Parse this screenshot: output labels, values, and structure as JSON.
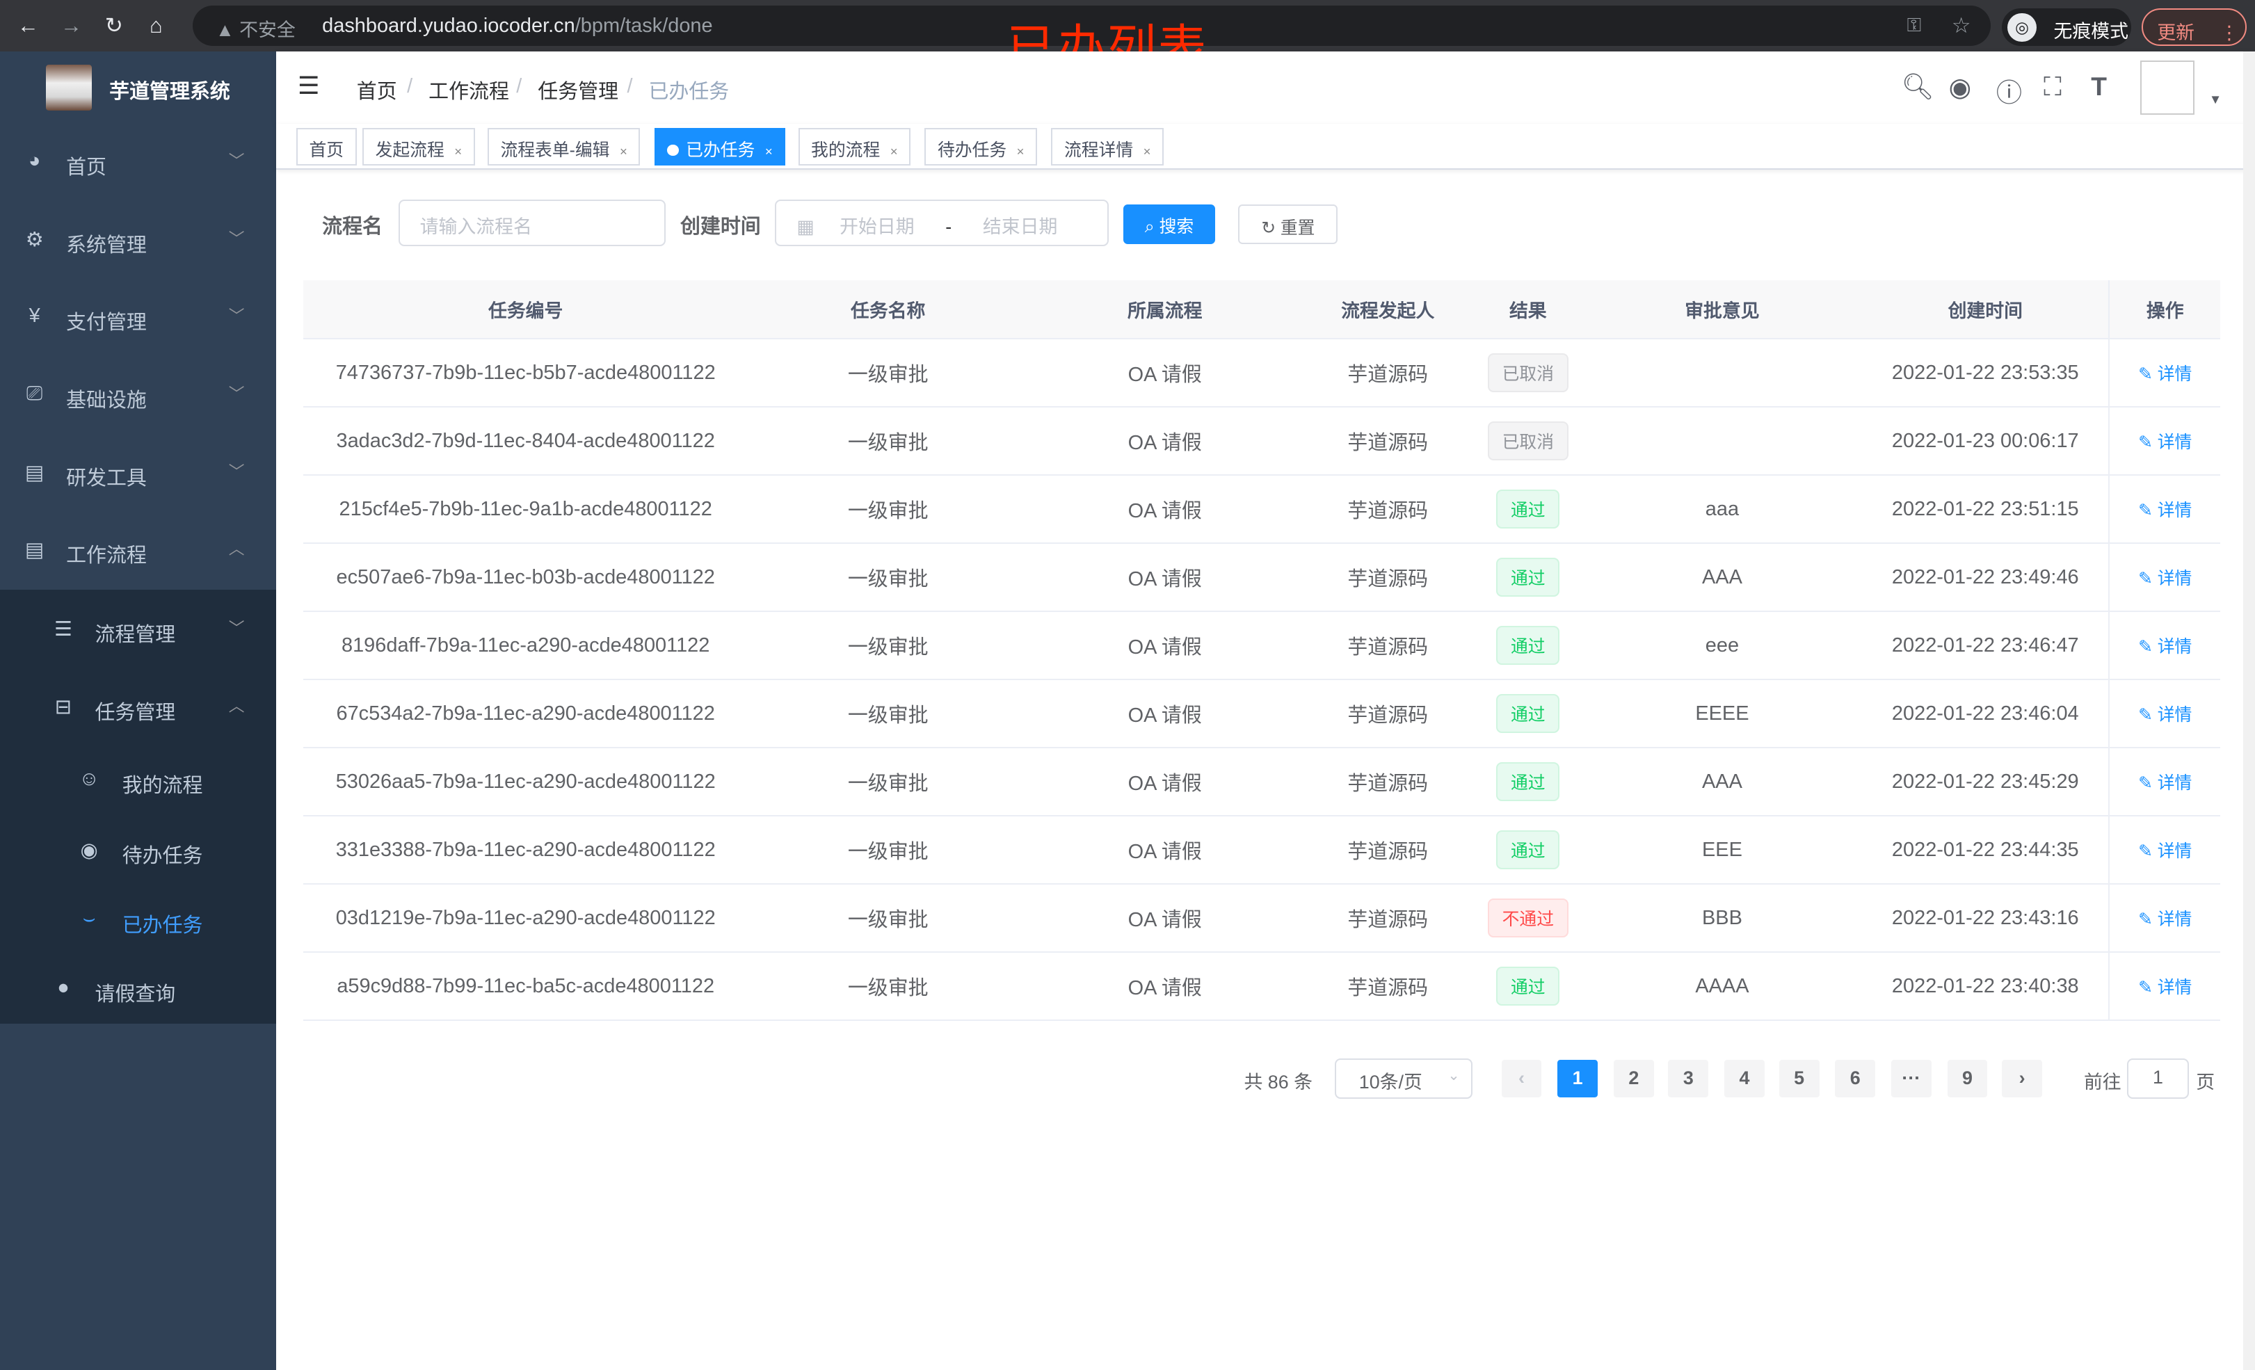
{
  "browser": {
    "insecure_label": "不安全",
    "url_host": "dashboard.yudao.iocoder.cn",
    "url_path": "/bpm/task/done",
    "incognito_label": "无痕模式",
    "update_label": "更新"
  },
  "overlay_title": "已办列表",
  "sidebar": {
    "app_title": "芋道管理系统",
    "items": [
      {
        "label": "首页",
        "icon": "dashboard-icon"
      },
      {
        "label": "系统管理",
        "icon": "gear-icon"
      },
      {
        "label": "支付管理",
        "icon": "yen-icon"
      },
      {
        "label": "基础设施",
        "icon": "monitor-icon"
      },
      {
        "label": "研发工具",
        "icon": "toolbox-icon"
      },
      {
        "label": "工作流程",
        "icon": "toolbox-icon"
      },
      {
        "label": "流程管理",
        "icon": "list-icon"
      },
      {
        "label": "任务管理",
        "icon": "tree-icon"
      },
      {
        "label": "我的流程",
        "icon": "people-icon"
      },
      {
        "label": "待办任务",
        "icon": "eye-icon"
      },
      {
        "label": "已办任务",
        "icon": "eye-closed-icon"
      },
      {
        "label": "请假查询",
        "icon": "user-icon"
      }
    ],
    "active_color": "#409eff"
  },
  "breadcrumb": [
    "首页",
    "工作流程",
    "任务管理",
    "已办任务"
  ],
  "tags": [
    "首页",
    "发起流程",
    "流程表单-编辑",
    "已办任务",
    "我的流程",
    "待办任务",
    "流程详情"
  ],
  "search": {
    "name_label": "流程名",
    "name_placeholder": "请输入流程名",
    "time_label": "创建时间",
    "start_placeholder": "开始日期",
    "range_sep": "-",
    "end_placeholder": "结束日期",
    "search_button": "搜索",
    "reset_button": "重置"
  },
  "table": {
    "headers": [
      "任务编号",
      "任务名称",
      "所属流程",
      "流程发起人",
      "结果",
      "审批意见",
      "创建时间",
      "操作"
    ],
    "rows": [
      {
        "id": "74736737-7b9b-11ec-b5b7-acde48001122",
        "name": "一级审批",
        "process": "OA 请假",
        "starter": "芋道源码",
        "result": "已取消",
        "status": "cancel",
        "comment": "",
        "time": "2022-01-22 23:53:35",
        "op": "详情"
      },
      {
        "id": "3adac3d2-7b9d-11ec-8404-acde48001122",
        "name": "一级审批",
        "process": "OA 请假",
        "starter": "芋道源码",
        "result": "已取消",
        "status": "cancel",
        "comment": "",
        "time": "2022-01-23 00:06:17",
        "op": "详情"
      },
      {
        "id": "215cf4e5-7b9b-11ec-9a1b-acde48001122",
        "name": "一级审批",
        "process": "OA 请假",
        "starter": "芋道源码",
        "result": "通过",
        "status": "pass",
        "comment": "aaa",
        "time": "2022-01-22 23:51:15",
        "op": "详情"
      },
      {
        "id": "ec507ae6-7b9a-11ec-b03b-acde48001122",
        "name": "一级审批",
        "process": "OA 请假",
        "starter": "芋道源码",
        "result": "通过",
        "status": "pass",
        "comment": "AAA",
        "time": "2022-01-22 23:49:46",
        "op": "详情"
      },
      {
        "id": "8196daff-7b9a-11ec-a290-acde48001122",
        "name": "一级审批",
        "process": "OA 请假",
        "starter": "芋道源码",
        "result": "通过",
        "status": "pass",
        "comment": "eee",
        "time": "2022-01-22 23:46:47",
        "op": "详情"
      },
      {
        "id": "67c534a2-7b9a-11ec-a290-acde48001122",
        "name": "一级审批",
        "process": "OA 请假",
        "starter": "芋道源码",
        "result": "通过",
        "status": "pass",
        "comment": "EEEE",
        "time": "2022-01-22 23:46:04",
        "op": "详情"
      },
      {
        "id": "53026aa5-7b9a-11ec-a290-acde48001122",
        "name": "一级审批",
        "process": "OA 请假",
        "starter": "芋道源码",
        "result": "通过",
        "status": "pass",
        "comment": "AAA",
        "time": "2022-01-22 23:45:29",
        "op": "详情"
      },
      {
        "id": "331e3388-7b9a-11ec-a290-acde48001122",
        "name": "一级审批",
        "process": "OA 请假",
        "starter": "芋道源码",
        "result": "通过",
        "status": "pass",
        "comment": "EEE",
        "time": "2022-01-22 23:44:35",
        "op": "详情"
      },
      {
        "id": "03d1219e-7b9a-11ec-a290-acde48001122",
        "name": "一级审批",
        "process": "OA 请假",
        "starter": "芋道源码",
        "result": "不通过",
        "status": "fail",
        "comment": "BBB",
        "time": "2022-01-22 23:43:16",
        "op": "详情"
      },
      {
        "id": "a59c9d88-7b99-11ec-ba5c-acde48001122",
        "name": "一级审批",
        "process": "OA 请假",
        "starter": "芋道源码",
        "result": "通过",
        "status": "pass",
        "comment": "AAAA",
        "time": "2022-01-22 23:40:38",
        "op": "详情"
      }
    ]
  },
  "pagination": {
    "total": "共 86 条",
    "page_size": "10条/页",
    "pages": [
      "1",
      "2",
      "3",
      "4",
      "5",
      "6",
      "···",
      "9"
    ],
    "current": "1",
    "goto_prefix": "前往",
    "goto_value": "1",
    "goto_suffix": "页"
  },
  "colors": {
    "primary": "#1890ff",
    "sidebar_bg": "#304156",
    "submenu_bg": "#1f2d3d",
    "pass": "#13ce66",
    "fail": "#ff4949"
  }
}
